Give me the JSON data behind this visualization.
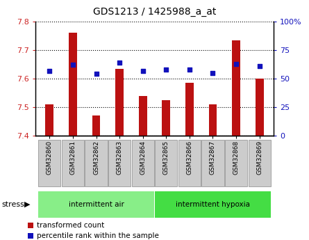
{
  "title": "GDS1213 / 1425988_a_at",
  "samples": [
    "GSM32860",
    "GSM32861",
    "GSM32862",
    "GSM32863",
    "GSM32864",
    "GSM32865",
    "GSM32866",
    "GSM32867",
    "GSM32868",
    "GSM32869"
  ],
  "transformed_count": [
    7.51,
    7.76,
    7.47,
    7.635,
    7.54,
    7.525,
    7.585,
    7.51,
    7.735,
    7.6
  ],
  "percentile_rank": [
    57,
    62,
    54,
    64,
    57,
    58,
    58,
    55,
    63,
    61
  ],
  "groups": [
    {
      "label": "intermittent air",
      "start": 0,
      "end": 4,
      "color": "#88ee88"
    },
    {
      "label": "intermittent hypoxia",
      "start": 5,
      "end": 9,
      "color": "#44dd44"
    }
  ],
  "group_label": "stress",
  "ylim_left": [
    7.4,
    7.8
  ],
  "ylim_right": [
    0,
    100
  ],
  "yticks_left": [
    7.4,
    7.5,
    7.6,
    7.7,
    7.8
  ],
  "yticks_right": [
    0,
    25,
    50,
    75,
    100
  ],
  "ytick_labels_right": [
    "0",
    "25",
    "50",
    "75",
    "100%"
  ],
  "bar_color": "#bb1111",
  "dot_color": "#1111bb",
  "bar_width": 0.35,
  "bar_bottom": 7.4,
  "legend_items": [
    {
      "color": "#bb1111",
      "label": "transformed count"
    },
    {
      "color": "#1111bb",
      "label": "percentile rank within the sample"
    }
  ]
}
